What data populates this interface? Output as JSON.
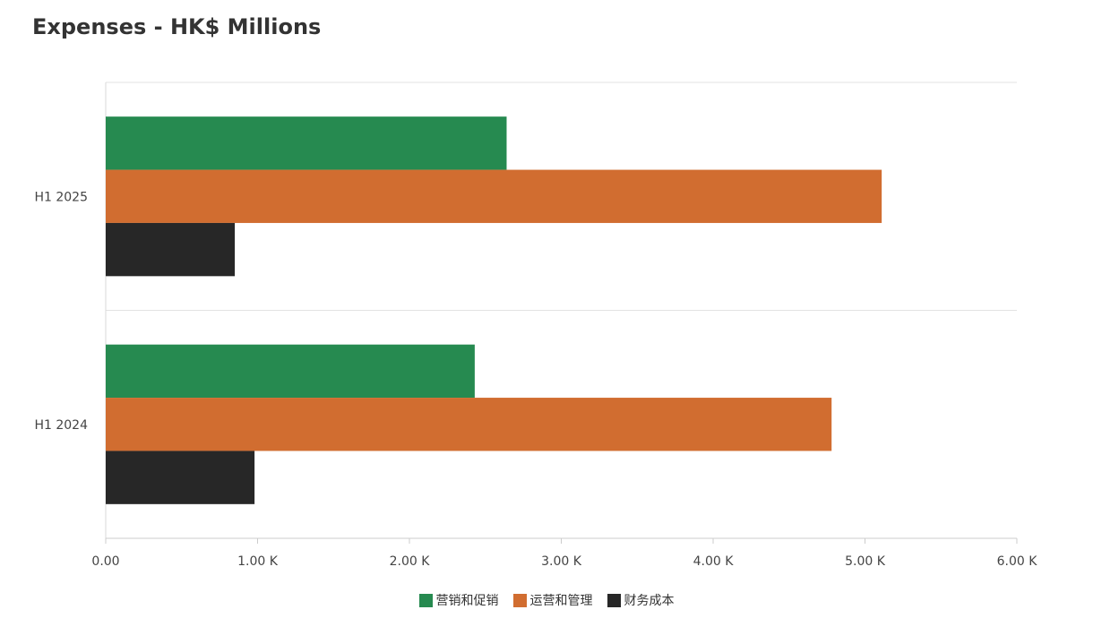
{
  "chart_data": {
    "type": "bar",
    "orientation": "horizontal",
    "title": "Expenses - HK$ Millions",
    "xlabel": "",
    "ylabel": "",
    "categories": [
      "H1 2025",
      "H1 2024"
    ],
    "series": [
      {
        "name": "营销和促销",
        "color": "#268A50",
        "values": [
          2640,
          2430
        ]
      },
      {
        "name": "运营和管理",
        "color": "#D16D30",
        "values": [
          5110,
          4780
        ]
      },
      {
        "name": "财务成本",
        "color": "#272727",
        "values": [
          850,
          980
        ]
      }
    ],
    "xlim": [
      0,
      6000
    ],
    "ticks": [
      "0.00",
      "1.00 K",
      "2.00 K",
      "3.00 K",
      "4.00 K",
      "5.00 K",
      "6.00 K"
    ],
    "grid": true,
    "legend_position": "bottom-center"
  }
}
